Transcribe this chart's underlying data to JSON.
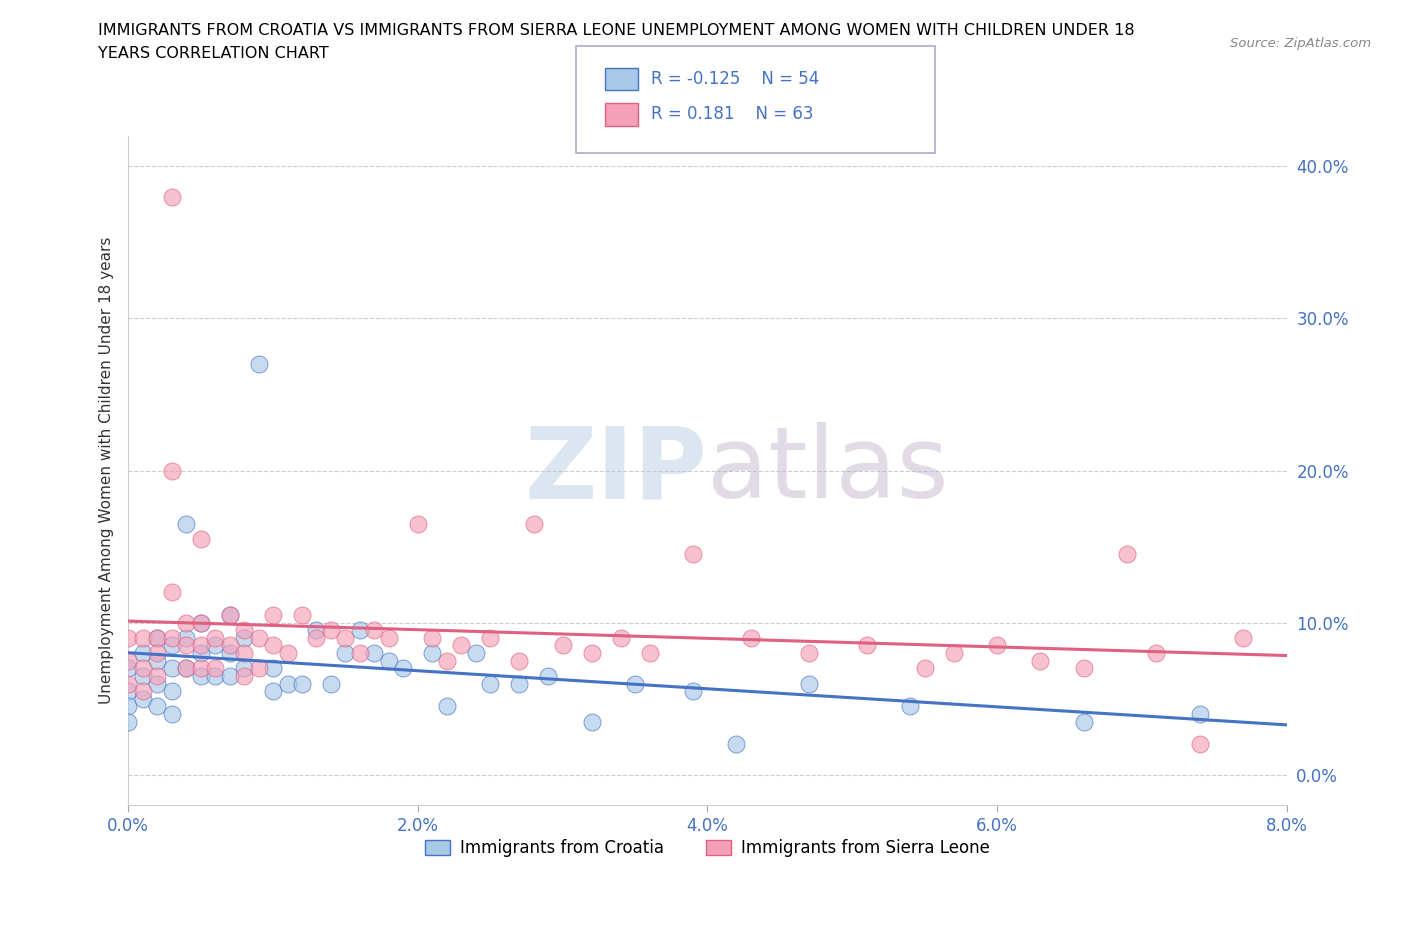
{
  "title_line1": "IMMIGRANTS FROM CROATIA VS IMMIGRANTS FROM SIERRA LEONE UNEMPLOYMENT AMONG WOMEN WITH CHILDREN UNDER 18",
  "title_line2": "YEARS CORRELATION CHART",
  "source_text": "Source: ZipAtlas.com",
  "ylabel": "Unemployment Among Women with Children Under 18 years",
  "xlim": [
    0.0,
    0.08
  ],
  "ylim": [
    -0.02,
    0.42
  ],
  "xticks": [
    0.0,
    0.02,
    0.04,
    0.06,
    0.08
  ],
  "xticklabels": [
    "0.0%",
    "2.0%",
    "4.0%",
    "6.0%",
    "8.0%"
  ],
  "yticks": [
    0.0,
    0.1,
    0.2,
    0.3,
    0.4
  ],
  "yticklabels": [
    "0.0%",
    "10.0%",
    "20.0%",
    "30.0%",
    "40.0%"
  ],
  "legend_labels": [
    "Immigrants from Croatia",
    "Immigrants from Sierra Leone"
  ],
  "legend_r_n": [
    {
      "R": "-0.125",
      "N": "54"
    },
    {
      "R": "0.181",
      "N": "63"
    }
  ],
  "color_croatia": "#a8c8e8",
  "color_sierra": "#f4a0b8",
  "trendline_color_croatia": "#4472c4",
  "trendline_color_sierra": "#e06080",
  "watermark_zip": "ZIP",
  "watermark_atlas": "atlas",
  "croatia_x": [
    0.0,
    0.0,
    0.0,
    0.0,
    0.001,
    0.001,
    0.001,
    0.002,
    0.002,
    0.002,
    0.002,
    0.003,
    0.003,
    0.003,
    0.003,
    0.004,
    0.004,
    0.004,
    0.005,
    0.005,
    0.005,
    0.006,
    0.006,
    0.007,
    0.007,
    0.007,
    0.008,
    0.008,
    0.009,
    0.01,
    0.01,
    0.011,
    0.012,
    0.013,
    0.014,
    0.015,
    0.016,
    0.017,
    0.018,
    0.019,
    0.021,
    0.022,
    0.024,
    0.025,
    0.027,
    0.029,
    0.032,
    0.035,
    0.039,
    0.042,
    0.047,
    0.054,
    0.066,
    0.074
  ],
  "croatia_y": [
    0.07,
    0.055,
    0.045,
    0.035,
    0.08,
    0.065,
    0.05,
    0.09,
    0.075,
    0.06,
    0.045,
    0.085,
    0.07,
    0.055,
    0.04,
    0.165,
    0.09,
    0.07,
    0.1,
    0.08,
    0.065,
    0.085,
    0.065,
    0.105,
    0.08,
    0.065,
    0.09,
    0.07,
    0.27,
    0.07,
    0.055,
    0.06,
    0.06,
    0.095,
    0.06,
    0.08,
    0.095,
    0.08,
    0.075,
    0.07,
    0.08,
    0.045,
    0.08,
    0.06,
    0.06,
    0.065,
    0.035,
    0.06,
    0.055,
    0.02,
    0.06,
    0.045,
    0.035,
    0.04
  ],
  "sierra_x": [
    0.0,
    0.0,
    0.0,
    0.001,
    0.001,
    0.001,
    0.002,
    0.002,
    0.002,
    0.003,
    0.003,
    0.003,
    0.003,
    0.004,
    0.004,
    0.004,
    0.005,
    0.005,
    0.005,
    0.005,
    0.006,
    0.006,
    0.007,
    0.007,
    0.008,
    0.008,
    0.008,
    0.009,
    0.009,
    0.01,
    0.01,
    0.011,
    0.012,
    0.013,
    0.014,
    0.015,
    0.016,
    0.017,
    0.018,
    0.02,
    0.021,
    0.022,
    0.023,
    0.025,
    0.027,
    0.028,
    0.03,
    0.032,
    0.034,
    0.036,
    0.039,
    0.043,
    0.047,
    0.051,
    0.055,
    0.057,
    0.06,
    0.063,
    0.066,
    0.069,
    0.071,
    0.074,
    0.077
  ],
  "sierra_y": [
    0.09,
    0.075,
    0.06,
    0.09,
    0.07,
    0.055,
    0.09,
    0.08,
    0.065,
    0.38,
    0.2,
    0.12,
    0.09,
    0.1,
    0.085,
    0.07,
    0.155,
    0.1,
    0.085,
    0.07,
    0.09,
    0.07,
    0.105,
    0.085,
    0.095,
    0.08,
    0.065,
    0.09,
    0.07,
    0.105,
    0.085,
    0.08,
    0.105,
    0.09,
    0.095,
    0.09,
    0.08,
    0.095,
    0.09,
    0.165,
    0.09,
    0.075,
    0.085,
    0.09,
    0.075,
    0.165,
    0.085,
    0.08,
    0.09,
    0.08,
    0.145,
    0.09,
    0.08,
    0.085,
    0.07,
    0.08,
    0.085,
    0.075,
    0.07,
    0.145,
    0.08,
    0.02,
    0.09
  ]
}
